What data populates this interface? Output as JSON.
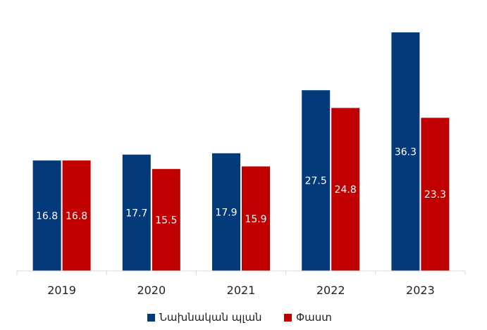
{
  "chart_data": {
    "type": "bar",
    "title": "",
    "xlabel": "",
    "ylabel": "",
    "categories": [
      "2019",
      "2020",
      "2021",
      "2022",
      "2023"
    ],
    "series": [
      {
        "name": "Նախնական պլան",
        "color": "#043a7a",
        "values": [
          16.8,
          17.7,
          17.9,
          27.5,
          36.3
        ]
      },
      {
        "name": "Փաստ",
        "color": "#c00000",
        "values": [
          16.8,
          15.5,
          15.9,
          24.8,
          23.3
        ]
      }
    ],
    "ylim": [
      0,
      36.3
    ],
    "grid": false,
    "data_labels": true,
    "legend_position": "bottom"
  }
}
